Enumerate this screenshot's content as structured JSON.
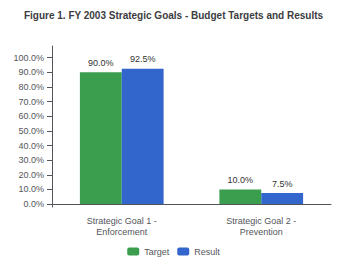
{
  "chart_data": {
    "type": "bar",
    "title": "Figure 1. FY 2003 Strategic Goals - Budget Targets and Results",
    "categories": [
      "Strategic Goal 1 -\nEnforcement",
      "Strategic Goal 2 -\nPrevention"
    ],
    "series": [
      {
        "name": "Target",
        "color": "#3a9e4e",
        "values": [
          90.0,
          10.0
        ],
        "value_labels": [
          "90.0%",
          "10.0%"
        ]
      },
      {
        "name": "Result",
        "color": "#3366cc",
        "values": [
          92.5,
          7.5
        ],
        "value_labels": [
          "92.5%",
          "7.5%"
        ]
      }
    ],
    "ylim": [
      -2,
      108
    ],
    "yticks": [
      {
        "value": 0,
        "label": "0.0%"
      },
      {
        "value": 10,
        "label": "10.0%"
      },
      {
        "value": 20,
        "label": "20.0%"
      },
      {
        "value": 30,
        "label": "30.0%"
      },
      {
        "value": 40,
        "label": "40.0%"
      },
      {
        "value": 50,
        "label": "50.0%"
      },
      {
        "value": 60,
        "label": "60.0%"
      },
      {
        "value": 70,
        "label": "70.0%"
      },
      {
        "value": 80,
        "label": "80.0%"
      },
      {
        "value": 90,
        "label": "90.0%"
      },
      {
        "value": 100,
        "label": "100.0%"
      }
    ],
    "data_labels": true,
    "legend": "bottom",
    "grid": false
  }
}
